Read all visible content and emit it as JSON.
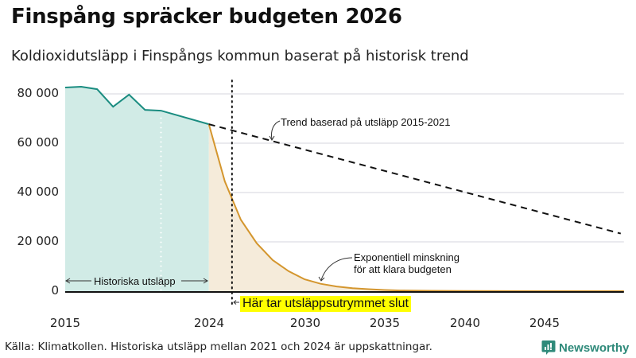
{
  "header": {
    "title": "Finspång spräcker budgeten 2026",
    "subtitle": "Koldioxidutsläpp i Finspångs kommun baserat på historisk trend"
  },
  "footer": {
    "source": "Källa: Klimatkollen. Historiska utsläpp mellan 2021 och 2024 är uppskattningar.",
    "brand": "Newsworthy",
    "brand_icon": "bar-chart-speech-bubble-icon"
  },
  "colors": {
    "historic_line": "#1a8c80",
    "historic_fill": "#d1ebe6",
    "budget_line": "#d4962e",
    "budget_fill": "#f5ebda",
    "trend_line": "#111111",
    "grid": "#e3e3e8",
    "highlight": "#ffff00",
    "brand": "#2f8a7a"
  },
  "chart_data": {
    "type": "area",
    "title": "Finspång spräcker budgeten 2026",
    "subtitle": "Koldioxidutsläpp i Finspångs kommun baserat på historisk trend",
    "xlabel": "",
    "ylabel": "",
    "xlim": [
      2015,
      2050
    ],
    "ylim": [
      0,
      85000
    ],
    "x_ticks": [
      "2015",
      "2024",
      "2030",
      "2035",
      "2040",
      "2045"
    ],
    "y_ticks": [
      "0",
      "20 000",
      "40 000",
      "60 000",
      "80 000"
    ],
    "grid": true,
    "legend": "none",
    "series": [
      {
        "name": "Historiska utsläpp",
        "style": "line+area",
        "x": [
          2015,
          2016,
          2017,
          2018,
          2019,
          2020,
          2021,
          2024
        ],
        "values": [
          82600,
          82900,
          81900,
          74800,
          79700,
          73500,
          73200,
          67700
        ]
      },
      {
        "name": "Exponentiell minskning för att klara budgeten",
        "style": "line+area",
        "x": [
          2024,
          2025,
          2026,
          2027,
          2028,
          2029,
          2030,
          2031,
          2032,
          2033,
          2034,
          2035,
          2036,
          2038,
          2040,
          2045,
          2050
        ],
        "values": [
          67700,
          44500,
          29000,
          19400,
          12600,
          8100,
          4800,
          3000,
          1900,
          1200,
          800,
          500,
          300,
          150,
          80,
          10,
          0
        ]
      },
      {
        "name": "Trend baserad på utsläpp 2015-2021",
        "style": "dashed",
        "x": [
          2024,
          2050
        ],
        "values": [
          67700,
          23200
        ]
      }
    ],
    "annotations": [
      {
        "text": "Trend baserad på utsläpp 2015-2021",
        "x": 2028,
        "y": 61000
      },
      {
        "text": "Exponentiell minskning för att klara budgeten",
        "x": 2031,
        "y": 4000
      },
      {
        "text": "Historiska utsläpp",
        "x_range": [
          2015,
          2024
        ],
        "y": 4000
      },
      {
        "text": "Här tar utsläppsutrymmet slut",
        "x": 2025.4,
        "type": "vertical-dotted-line"
      },
      {
        "text": "",
        "x": 2021,
        "type": "vertical-dotted-white-line"
      }
    ]
  },
  "labels": {
    "trend": "Trend baserad på utsläpp 2015-2021",
    "expo_line1": "Exponentiell minskning",
    "expo_line2": "för att klara budgeten",
    "historic": "Historiska utsläpp",
    "budget_end": "Här tar utsläppsutrymmet slut"
  }
}
